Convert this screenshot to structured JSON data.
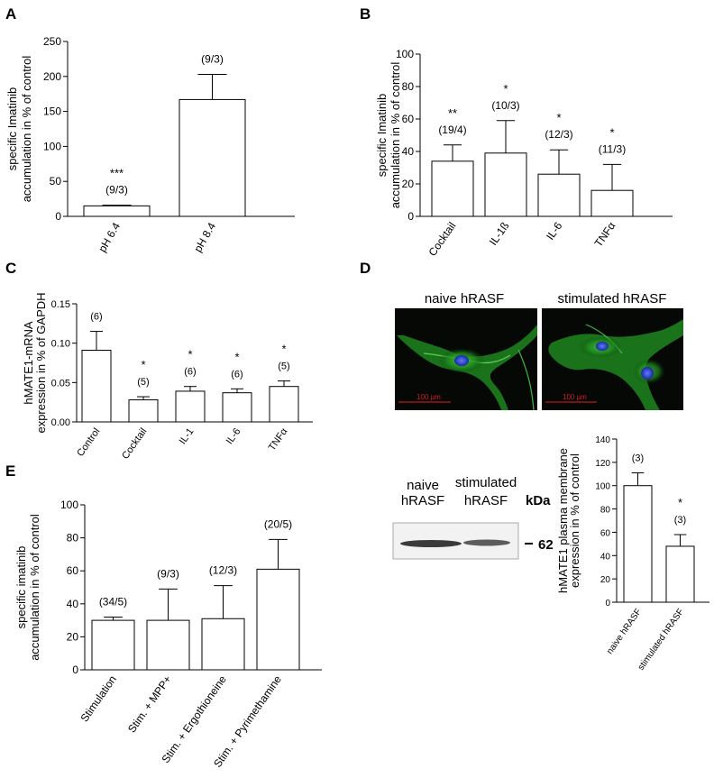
{
  "panels": {
    "A": {
      "letter": "A"
    },
    "B": {
      "letter": "B"
    },
    "C": {
      "letter": "C"
    },
    "D": {
      "letter": "D",
      "image_titles": [
        "naive hRASF",
        "stimulated hRASF"
      ],
      "scale_bar": "100 µm",
      "blot_labels": [
        [
          "naive",
          "hRASF"
        ],
        [
          "stimulated",
          "hRASF"
        ]
      ],
      "kda_label": "kDa",
      "band_marker": "62"
    },
    "E": {
      "letter": "E"
    }
  },
  "chart_data": [
    {
      "id": "A",
      "type": "bar",
      "categories": [
        "pH 6.4",
        "pH 8.4"
      ],
      "values": [
        15,
        167
      ],
      "errors": [
        1,
        36
      ],
      "n_labels": [
        "(9/3)",
        "(9/3)"
      ],
      "significance": [
        "***",
        ""
      ],
      "ylabel": [
        "specific Imatinib",
        "accumulation in % of control"
      ],
      "ylim": [
        0,
        250
      ],
      "yticks": [
        0,
        50,
        100,
        150,
        200,
        250
      ]
    },
    {
      "id": "B",
      "type": "bar",
      "categories": [
        "Cocktail",
        "IL-1ß",
        "IL-6",
        "TNFα"
      ],
      "values": [
        34,
        39,
        26,
        16
      ],
      "errors": [
        10,
        20,
        15,
        16
      ],
      "n_labels": [
        "(19/4)",
        "(10/3)",
        "(12/3)",
        "(11/3)"
      ],
      "significance": [
        "**",
        "*",
        "*",
        "*"
      ],
      "ylabel": [
        "specific Imatinib",
        "accumulation in % of control"
      ],
      "ylim": [
        0,
        100
      ],
      "yticks": [
        0,
        20,
        40,
        60,
        80,
        100
      ]
    },
    {
      "id": "C",
      "type": "bar",
      "categories": [
        "Control",
        "Cocktail",
        "IL-1",
        "IL-6",
        "TNFα"
      ],
      "values": [
        0.091,
        0.028,
        0.039,
        0.037,
        0.045
      ],
      "errors": [
        0.024,
        0.004,
        0.006,
        0.005,
        0.007
      ],
      "n_labels": [
        "(6)",
        "(5)",
        "(6)",
        "(6)",
        "(5)"
      ],
      "significance": [
        "",
        "*",
        "*",
        "*",
        "*"
      ],
      "ylabel": [
        "hMATE1-mRNA",
        "expression in % of GAPDH"
      ],
      "ylim": [
        0,
        0.15
      ],
      "yticks": [
        "0.00",
        "0.05",
        "0.10",
        "0.15"
      ]
    },
    {
      "id": "D",
      "type": "bar",
      "categories": [
        "naive hRASF",
        "stimulated hRASF"
      ],
      "values": [
        100,
        48
      ],
      "errors": [
        11,
        10
      ],
      "n_labels": [
        "(3)",
        "(3)"
      ],
      "significance": [
        "",
        "*"
      ],
      "ylabel": [
        "hMATE1 plasma membrane",
        "expression in % of control"
      ],
      "ylim": [
        0,
        140
      ],
      "yticks": [
        0,
        20,
        40,
        60,
        80,
        100,
        120,
        140
      ]
    },
    {
      "id": "E",
      "type": "bar",
      "categories": [
        "Stimulation",
        "Stim. + MPP+",
        "Stim. + Ergothioneine",
        "Stim. + Pyrimethamine"
      ],
      "values": [
        30,
        30,
        31,
        61
      ],
      "errors": [
        2,
        19,
        20,
        18
      ],
      "n_labels": [
        "(34/5)",
        "(9/3)",
        "(12/3)",
        "(20/5)"
      ],
      "significance": [
        "",
        "",
        "",
        ""
      ],
      "ylabel": [
        "specific imatinib",
        "accumulation in % of control"
      ],
      "ylim": [
        0,
        100
      ],
      "yticks": [
        0,
        20,
        40,
        60,
        80,
        100
      ]
    }
  ]
}
